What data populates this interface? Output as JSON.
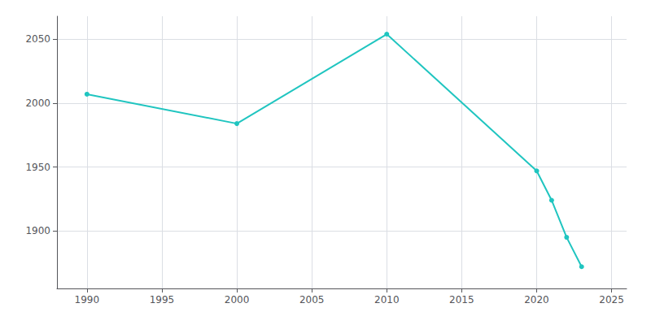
{
  "chart_data": {
    "type": "line",
    "x": [
      1990,
      2000,
      2010,
      2020,
      2021,
      2022,
      2023
    ],
    "values": [
      2007,
      1984,
      2054,
      1947,
      1924,
      1895,
      1872
    ],
    "color": "#20c5c0",
    "marker": "circle",
    "xlim": [
      1988,
      2026
    ],
    "ylim": [
      1855,
      2068
    ],
    "xticks": [
      1990,
      1995,
      2000,
      2005,
      2010,
      2015,
      2020,
      2025
    ],
    "yticks": [
      1900,
      1950,
      2000,
      2050
    ],
    "grid": true
  }
}
